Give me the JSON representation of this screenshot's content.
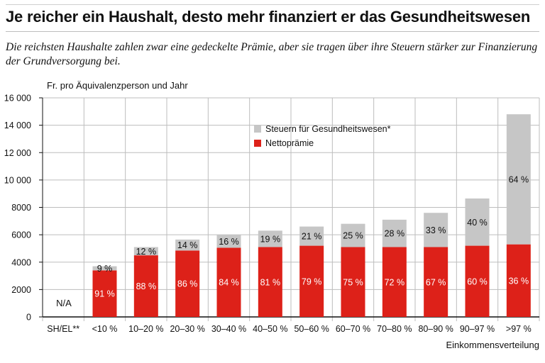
{
  "title": "Je reicher ein Haushalt, desto mehr finanziert er das Gesundheitswesen",
  "subtitle": "Die reichsten Haushalte zahlen zwar eine gedeckelte Prämie, aber sie tragen über ihre Steuern stärker zur Finanzierung der Grundversorgung bei.",
  "colors": {
    "steuern": "#c6c6c6",
    "praemie": "#dd2119",
    "grid": "#bdbdbd",
    "axis": "#111111"
  },
  "chart_data": {
    "type": "bar",
    "stacked": true,
    "unit_label": "Fr. pro Äquivalenzperson und Jahr",
    "xlabel": "Einkommensverteilung",
    "ylim": [
      0,
      16000
    ],
    "yticks": [
      "0",
      "2000",
      "4000",
      "6000",
      "8000",
      "10 000",
      "12 000",
      "14 000",
      "16 000"
    ],
    "ytick_values": [
      0,
      2000,
      4000,
      6000,
      8000,
      10000,
      12000,
      14000,
      16000
    ],
    "grid": true,
    "legend_position": "top-center",
    "categories": [
      "SH/EL**",
      "<10 %",
      "10–20 %",
      "20–30 %",
      "30–40 %",
      "40–50 %",
      "50–60 %",
      "60–70 %",
      "70–80 %",
      "80–90 %",
      "90–97 %",
      ">97 %"
    ],
    "na_label": "N/A",
    "series": [
      {
        "name": "Nettoprämie",
        "color_key": "praemie",
        "values": [
          null,
          3400,
          4500,
          4850,
          5050,
          5100,
          5200,
          5100,
          5100,
          5100,
          5200,
          5300
        ],
        "labels": [
          "",
          "91 %",
          "88 %",
          "86 %",
          "84 %",
          "81 %",
          "79 %",
          "75 %",
          "72 %",
          "67 %",
          "60 %",
          "36 %"
        ]
      },
      {
        "name": "Steuern für Gesundheitswesen*",
        "color_key": "steuern",
        "values": [
          null,
          300,
          600,
          800,
          950,
          1200,
          1400,
          1700,
          2000,
          2500,
          3450,
          9500
        ],
        "labels": [
          "",
          "9 %",
          "12 %",
          "14 %",
          "16 %",
          "19 %",
          "21 %",
          "25 %",
          "28 %",
          "33 %",
          "40 %",
          "64 %"
        ]
      }
    ]
  }
}
